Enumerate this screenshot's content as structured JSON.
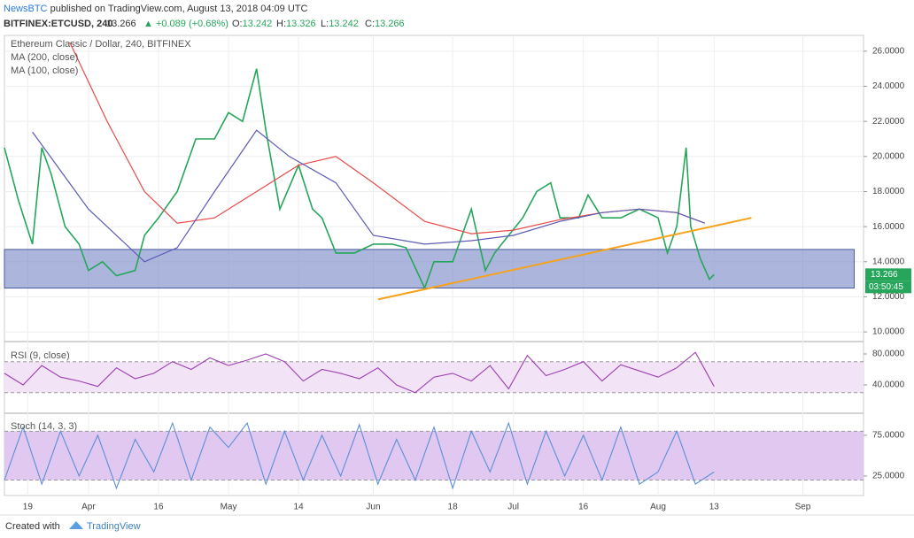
{
  "header": {
    "publisher": "NewsBTC",
    "published": "published on TradingView.com, August 13, 2018 04:09 UTC",
    "symbol": "BITFINEX:ETCUSD, 240",
    "price": "13.266",
    "change": "▲ +0.089 (+0.68%)",
    "ohlc": [
      {
        "key": "O:",
        "value": "13.242"
      },
      {
        "key": "H:",
        "value": "13.326"
      },
      {
        "key": "L:",
        "value": "13.242"
      },
      {
        "key": "C:",
        "value": "13.266"
      }
    ]
  },
  "chart_data": [
    {
      "type": "line",
      "title": "Ethereum Classic / Dollar, 240, BITFINEX",
      "xlim": [
        13,
        197
      ],
      "xticks": [
        {
          "value": 18,
          "label": "19"
        },
        {
          "value": 31,
          "label": "Apr"
        },
        {
          "value": 46,
          "label": "16"
        },
        {
          "value": 61,
          "label": "May"
        },
        {
          "value": 76,
          "label": "14"
        },
        {
          "value": 92,
          "label": "Jun"
        },
        {
          "value": 109,
          "label": "18"
        },
        {
          "value": 122,
          "label": "Jul"
        },
        {
          "value": 137,
          "label": "16"
        },
        {
          "value": 153,
          "label": "Aug"
        },
        {
          "value": 165,
          "label": "13"
        },
        {
          "value": 184,
          "label": "Sep"
        }
      ],
      "ylim": [
        9.5,
        26.9
      ],
      "yticks": [
        {
          "value": 10,
          "label": "10.0000"
        },
        {
          "value": 12,
          "label": "12.0000"
        },
        {
          "value": 14,
          "label": "14.0000"
        },
        {
          "value": 16,
          "label": "16.0000"
        },
        {
          "value": 18,
          "label": "18.0000"
        },
        {
          "value": 20,
          "label": "20.0000"
        },
        {
          "value": 22,
          "label": "22.0000"
        },
        {
          "value": 24,
          "label": "24.0000"
        },
        {
          "value": 26,
          "label": "26.0000"
        }
      ],
      "grid": true,
      "series": [
        {
          "name": "Ethereum Classic / Dollar, 240, BITFINEX",
          "color": "#26a65b",
          "x": [
            13,
            16,
            19,
            21,
            23,
            26,
            29,
            31,
            34,
            37,
            41,
            43,
            46,
            50,
            54,
            58,
            61,
            64,
            67,
            69,
            72,
            76,
            79,
            81,
            84,
            88,
            92,
            96,
            99,
            103,
            105,
            109,
            113,
            116,
            118,
            121,
            124,
            127,
            130,
            132,
            136,
            138,
            141,
            145,
            149,
            153,
            155,
            157,
            159,
            160,
            162,
            164,
            165
          ],
          "values": [
            20.5,
            17.5,
            15,
            20.5,
            19,
            16,
            15,
            13.5,
            14,
            13.2,
            13.5,
            15.5,
            16.5,
            18,
            21,
            21,
            22.5,
            22,
            25,
            21.5,
            17,
            19.5,
            17,
            16.5,
            14.5,
            14.5,
            15,
            15,
            14.8,
            12.5,
            14,
            14,
            17,
            13.5,
            14.5,
            15.5,
            16.5,
            18,
            18.5,
            16.5,
            16.5,
            17.8,
            16.5,
            16.5,
            17,
            16.5,
            14.5,
            16,
            20.5,
            16,
            14.2,
            13,
            13.266
          ]
        },
        {
          "name": "MA (200, close)",
          "color": "#e84a4a",
          "x": [
            27,
            35,
            43,
            50,
            58,
            67,
            76,
            84,
            92,
            103,
            113,
            122,
            132,
            141,
            149,
            157,
            163
          ],
          "values": [
            26.5,
            22,
            18,
            16.2,
            16.5,
            18,
            19.5,
            20,
            18.5,
            16.3,
            15.6,
            15.8,
            16.4,
            16.8,
            17,
            16.8,
            16.2
          ]
        },
        {
          "name": "MA (100, close)",
          "color": "#5b5bb5",
          "x": [
            19,
            31,
            43,
            50,
            58,
            67,
            74,
            84,
            92,
            103,
            113,
            122,
            132,
            141,
            149,
            157,
            163
          ],
          "values": [
            21.4,
            17,
            14,
            14.8,
            18,
            21.5,
            20,
            18.5,
            15.5,
            15,
            15.2,
            15.5,
            16.3,
            16.8,
            17,
            16.8,
            16.2
          ]
        }
      ],
      "zone": [
        12.5,
        14.7
      ],
      "zone_x": [
        13,
        195
      ],
      "zone_color": "#7f8fc9",
      "trendline": {
        "x": [
          93,
          173
        ],
        "values": [
          11.85,
          16.5
        ],
        "color": "#f7a21b"
      },
      "last_label": "13.266",
      "countdown": "03:50:45"
    },
    {
      "type": "line",
      "title": "RSI (9, close)",
      "color": "#9b3fb0",
      "ylim": [
        5.7,
        93.7
      ],
      "yticks": [
        {
          "value": 40,
          "label": "40.0000"
        },
        {
          "value": 80,
          "label": "80.0000"
        }
      ],
      "band": [
        30,
        70
      ],
      "x": [
        13,
        17,
        21,
        25,
        29,
        33,
        37,
        41,
        45,
        49,
        53,
        57,
        61,
        65,
        69,
        73,
        77,
        81,
        85,
        89,
        93,
        97,
        101,
        105,
        109,
        113,
        117,
        121,
        125,
        129,
        133,
        137,
        141,
        145,
        149,
        153,
        157,
        161,
        165
      ],
      "values": [
        55,
        40,
        65,
        50,
        45,
        38,
        62,
        48,
        55,
        70,
        60,
        75,
        65,
        72,
        80,
        70,
        45,
        60,
        55,
        48,
        62,
        40,
        30,
        50,
        55,
        45,
        65,
        35,
        78,
        52,
        60,
        70,
        45,
        66,
        58,
        50,
        62,
        82,
        38
      ]
    },
    {
      "type": "line",
      "title": "Stoch (14, 3, 3)",
      "color": "#5b8fd6",
      "ylim": [
        1,
        101
      ],
      "yticks": [
        {
          "value": 25,
          "label": "25.0000"
        },
        {
          "value": 75,
          "label": "75.0000"
        }
      ],
      "band": [
        20,
        80
      ],
      "x": [
        13,
        17,
        21,
        25,
        29,
        33,
        37,
        41,
        45,
        49,
        53,
        57,
        61,
        65,
        69,
        73,
        77,
        81,
        85,
        89,
        93,
        97,
        101,
        105,
        109,
        113,
        117,
        121,
        125,
        129,
        133,
        137,
        141,
        145,
        149,
        153,
        157,
        161,
        165
      ],
      "values": [
        20,
        85,
        15,
        80,
        25,
        75,
        10,
        70,
        30,
        90,
        20,
        85,
        60,
        90,
        15,
        80,
        20,
        75,
        25,
        88,
        15,
        70,
        20,
        85,
        10,
        80,
        30,
        90,
        15,
        80,
        25,
        75,
        20,
        85,
        15,
        30,
        80,
        15,
        30
      ]
    }
  ],
  "footer": {
    "created": "Created with",
    "brand": "TradingView"
  }
}
